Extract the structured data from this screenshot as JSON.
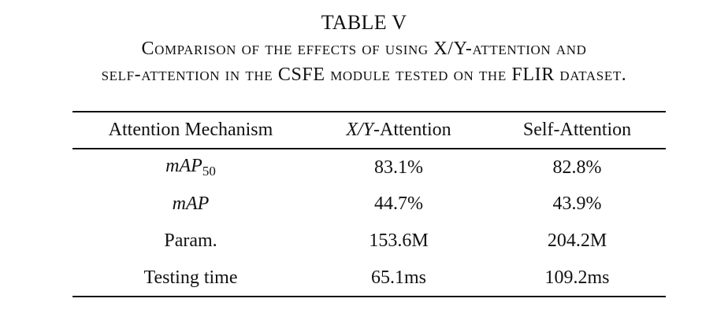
{
  "table": {
    "number": "TABLE V",
    "title_line_1": "Comparison of the effects of using X/Y-attention and",
    "title_line_2": "self-attention in the CSFE module tested on the FLIR dataset.",
    "headers": {
      "mechanism": "Attention Mechanism",
      "xy_symbol": "X/Y",
      "xy_suffix": "-Attention",
      "self": "Self-Attention"
    },
    "rows": [
      {
        "label_main": "mAP",
        "label_sub": "50",
        "xy_attention": "83.1%",
        "self_attention": "82.8%"
      },
      {
        "label_main": "mAP",
        "xy_attention": "44.7%",
        "self_attention": "43.9%"
      },
      {
        "label": "Param.",
        "xy_attention": "153.6M",
        "self_attention": "204.2M"
      },
      {
        "label": "Testing time",
        "xy_attention": "65.1ms",
        "self_attention": "109.2ms"
      }
    ]
  }
}
